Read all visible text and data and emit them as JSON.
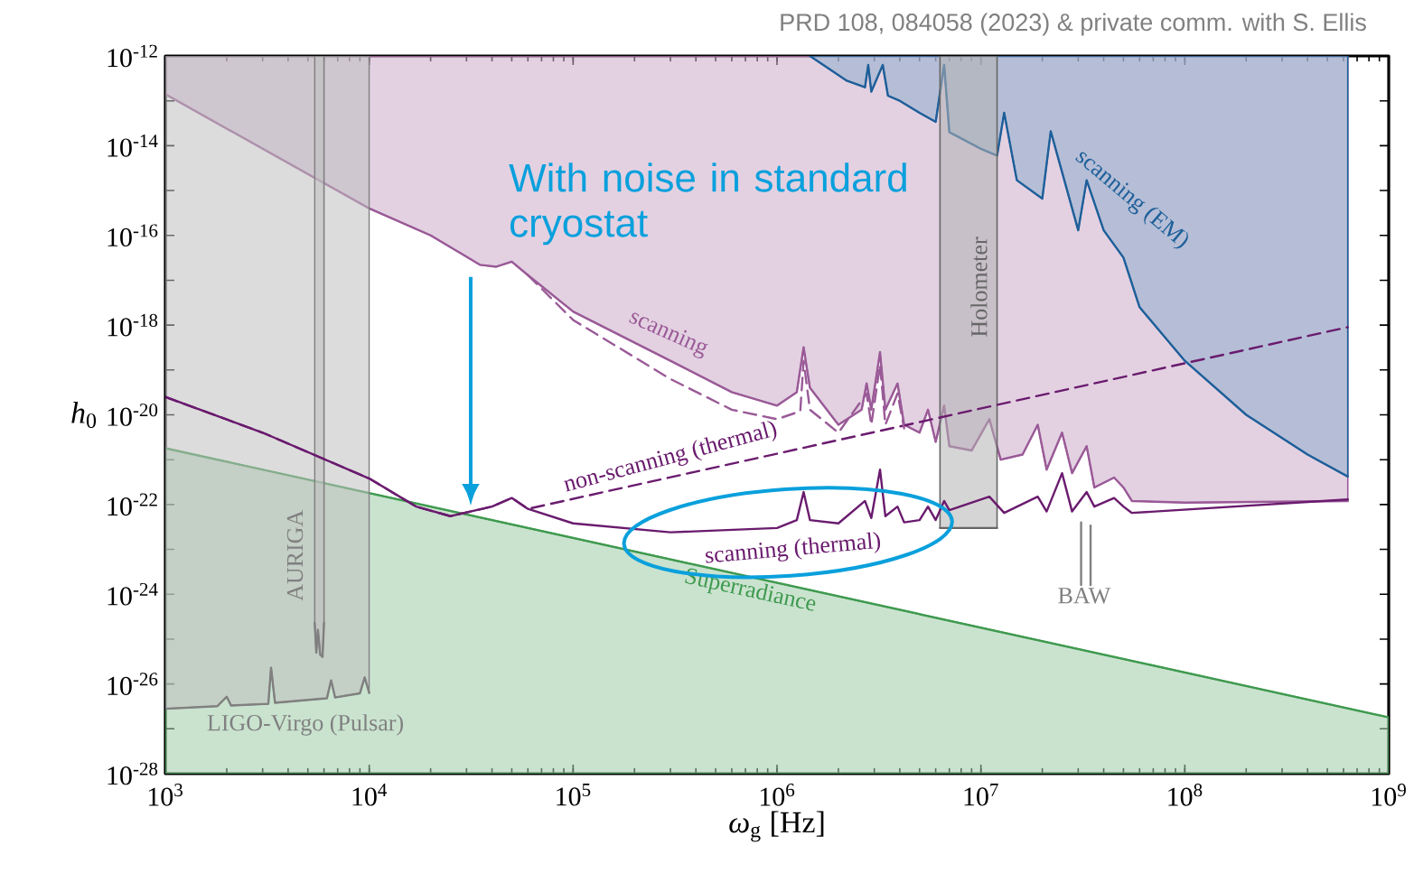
{
  "chart_data": {
    "type": "line",
    "log": "xy",
    "xlabel": "*ω*$_{g}$ [Hz]",
    "ylabel": "*h*$_{0}$",
    "xlim": [
      1000,
      1000000000
    ],
    "ylim": [
      1e-28,
      1e-12
    ],
    "xticks": [
      {
        "value": 1000,
        "label": "10$^{3}$"
      },
      {
        "value": 10000,
        "label": "10$^{4}$"
      },
      {
        "value": 100000,
        "label": "10$^{5}$"
      },
      {
        "value": 1000000,
        "label": "10$^{6}$"
      },
      {
        "value": 10000000,
        "label": "10$^{7}$"
      },
      {
        "value": 100000000,
        "label": "10$^{8}$"
      },
      {
        "value": 1000000000,
        "label": "10$^{9}$"
      }
    ],
    "yticks": [
      {
        "value": 1e-28,
        "label": "10$^{-28}$"
      },
      {
        "value": 1e-27,
        "label": null
      },
      {
        "value": 1e-26,
        "label": "10$^{-26}$"
      },
      {
        "value": 1e-25,
        "label": null
      },
      {
        "value": 1e-24,
        "label": "10$^{-24}$"
      },
      {
        "value": 1e-23,
        "label": null
      },
      {
        "value": 1e-22,
        "label": "10$^{-22}$"
      },
      {
        "value": 1e-21,
        "label": null
      },
      {
        "value": 1e-20,
        "label": "10$^{-20}$"
      },
      {
        "value": 1e-19,
        "label": null
      },
      {
        "value": 1e-18,
        "label": "10$^{-18}$"
      },
      {
        "value": 1e-17,
        "label": null
      },
      {
        "value": 1e-16,
        "label": "10$^{-16}$"
      },
      {
        "value": 1e-15,
        "label": null
      },
      {
        "value": 1e-14,
        "label": "10$^{-14}$"
      },
      {
        "value": 1e-13,
        "label": null
      },
      {
        "value": 1e-12,
        "label": "10$^{-12}$"
      }
    ],
    "annotations": [
      "PRD 108, 084058 (2023) & private comm. with S. Ellis",
      "With noise in standard cryostat"
    ],
    "series": [
      {
        "name": "Superradiance",
        "color": "#3f9a4f",
        "x": [
          1000,
          1000000000
        ],
        "values": [
          1.8e-21,
          1.8e-27
        ],
        "lower": [
          1e-28,
          1e-28
        ],
        "upper": [
          1.8e-21,
          1.8e-27
        ]
      },
      {
        "name": "scanning",
        "color": "#9a5a97",
        "x": [
          1000,
          10000,
          20000,
          35000,
          42000,
          50000,
          60000,
          100000,
          300000,
          600000,
          1000000,
          1250000,
          1350000,
          1450000,
          2000000,
          2600000,
          2750000,
          2900000,
          3200000,
          3400000,
          3900000,
          4200000,
          5000000,
          5500000,
          6000000,
          6600000,
          7000000,
          9000000,
          11000000,
          12500000,
          16000000,
          19000000,
          21000000,
          25000000,
          28000000,
          33000000,
          36000000,
          45000000,
          50000000,
          55000000,
          100000000,
          630000000
        ],
        "values": [
          1.4e-13,
          4e-16,
          1e-16,
          2.2e-17,
          2e-17,
          2.6e-17,
          1.3e-17,
          2e-18,
          1.6e-19,
          3.2e-20,
          1.6e-20,
          3.2e-20,
          3.2e-19,
          4e-20,
          6e-21,
          1.3e-20,
          5e-20,
          1.3e-20,
          2.5e-19,
          1.3e-20,
          5e-20,
          6e-21,
          4e-21,
          1.3e-20,
          2.5e-21,
          1.6e-20,
          2e-21,
          1.6e-21,
          8e-21,
          1e-21,
          1.3e-21,
          6e-21,
          6e-22,
          4e-21,
          5e-22,
          2e-21,
          2.4e-22,
          4e-22,
          2.4e-22,
          1.2e-22,
          1.1e-22,
          1.2e-22
        ],
        "lower": [
          1.4e-13,
          4e-16,
          1e-16,
          2.2e-17,
          2e-17,
          2.6e-17,
          1.3e-17,
          2e-18,
          1.6e-19,
          3.2e-20,
          1.6e-20,
          3.2e-20,
          3.2e-19,
          4e-20,
          6e-21,
          1.3e-20,
          5e-20,
          1.3e-20,
          2.5e-19,
          1.3e-20,
          5e-20,
          6e-21,
          4e-21,
          1.3e-20,
          2.5e-21,
          1.6e-20,
          2e-21,
          1.6e-21,
          8e-21,
          1e-21,
          1.3e-21,
          6e-21,
          6e-22,
          4e-21,
          5e-22,
          2e-21,
          2.4e-22,
          4e-22,
          2.4e-22,
          1.2e-22,
          1.1e-22,
          1.2e-22
        ],
        "upper": [
          1e-12,
          1e-12,
          1e-12,
          1e-12,
          1e-12,
          1e-12,
          1e-12,
          1e-12,
          1e-12,
          1e-12,
          1e-12,
          1e-12,
          1e-12,
          1e-12,
          1e-12,
          1e-12,
          1e-12,
          1e-12,
          1e-12,
          1e-12,
          1e-12,
          1e-12,
          1e-12,
          1e-12,
          1e-12,
          1e-12,
          1e-12,
          1e-12,
          1e-12,
          1e-12,
          1e-12,
          1e-12,
          1e-12,
          1e-12,
          1e-12,
          1e-12,
          1e-12,
          1e-12,
          1e-12,
          1e-12,
          1e-12,
          1e-12
        ]
      },
      {
        "name": "scanning (EM)",
        "color": "#1f5f9a",
        "x": [
          1450000,
          2200000,
          2700000,
          2800000,
          2900000,
          3300000,
          3500000,
          4000000,
          5000000,
          6000000,
          6600000,
          7000000,
          10000000,
          12000000,
          13000000,
          15000000,
          20000000,
          22000000,
          30000000,
          33000000,
          40000000,
          50000000,
          60000000,
          100000000,
          200000000,
          400000000,
          630000000
        ],
        "values": [
          1e-12,
          2.8e-13,
          2e-13,
          6.3e-13,
          1.6e-13,
          6.3e-13,
          1.3e-13,
          1e-13,
          5.4e-14,
          3.4e-14,
          6.3e-13,
          2e-14,
          8.5e-15,
          6e-15,
          5.4e-14,
          1.7e-15,
          6.6e-16,
          2.1e-14,
          1.3e-16,
          1.7e-15,
          1.3e-16,
          3.2e-17,
          2.5e-18,
          1.6e-19,
          1e-20,
          1.3e-21,
          4.2e-22
        ],
        "lower": [
          1e-12,
          2.8e-13,
          2e-13,
          6.3e-13,
          1.6e-13,
          6.3e-13,
          1.3e-13,
          1e-13,
          5.4e-14,
          3.4e-14,
          6.3e-13,
          2e-14,
          8.5e-15,
          6e-15,
          5.4e-14,
          1.7e-15,
          6.6e-16,
          2.1e-14,
          1.3e-16,
          1.7e-15,
          1.3e-16,
          3.2e-17,
          2.5e-18,
          1.6e-19,
          1e-20,
          1.3e-21,
          4.2e-22
        ],
        "upper": [
          1e-12,
          1e-12,
          1e-12,
          1e-12,
          1e-12,
          1e-12,
          1e-12,
          1e-12,
          1e-12,
          1e-12,
          1e-12,
          1e-12,
          1e-12,
          1e-12,
          1e-12,
          1e-12,
          1e-12,
          1e-12,
          1e-12,
          1e-12,
          1e-12,
          1e-12,
          1e-12,
          1e-12,
          1e-12,
          1e-12,
          1e-12
        ]
      },
      {
        "name": "LIGO-Virgo (Pulsar)",
        "color": "#808080",
        "x": [
          1000,
          1800,
          2000,
          2100,
          3200,
          3300,
          3450,
          6200,
          6500,
          6800,
          9000,
          9500,
          10000
        ],
        "values": [
          2.8e-27,
          3.2e-27,
          5.2e-27,
          3.3e-27,
          3.6e-27,
          2.3e-26,
          3.8e-27,
          4.8e-27,
          1.2e-26,
          5e-27,
          6.2e-27,
          1.4e-26,
          6.3e-27
        ],
        "lower": [
          2.8e-27,
          3.2e-27,
          5.2e-27,
          3.3e-27,
          3.6e-27,
          2.3e-26,
          3.8e-27,
          4.8e-27,
          1.2e-26,
          5e-27,
          6.2e-27,
          1.4e-26,
          6.3e-27
        ],
        "upper": [
          1e-12,
          1e-12,
          1e-12,
          1e-12,
          1e-12,
          1e-12,
          1e-12,
          1e-12,
          1e-12,
          1e-12,
          1e-12,
          1e-12,
          1e-12
        ]
      },
      {
        "name": "AURIGA",
        "color": "#808080",
        "x": [
          5400,
          5500,
          5600,
          5750,
          5900,
          6000
        ],
        "values": [
          2.3e-25,
          5e-26,
          1.6e-25,
          4.5e-26,
          4e-26,
          2.3e-25
        ],
        "lower": [
          2.3e-25,
          5e-26,
          1.6e-25,
          4.5e-26,
          4e-26,
          2.3e-25
        ],
        "upper": [
          1e-12,
          1e-12,
          1e-12,
          1e-12,
          1e-12,
          1e-12
        ]
      },
      {
        "name": "Holometer",
        "color": "#666666",
        "x": [
          6300000,
          12000000
        ],
        "values": [
          3e-23,
          3e-23
        ],
        "lower": [
          3e-23,
          3e-23
        ],
        "upper": [
          1e-12,
          1e-12
        ]
      },
      {
        "name": "non-scanning (thermal)",
        "color": "#6a1b6e",
        "line_style": "dashed",
        "x": [
          1000,
          3000,
          10000,
          17000,
          25000,
          40000,
          50000,
          60000,
          630000000
        ],
        "values": [
          2.5e-20,
          4e-21,
          3.8e-22,
          9e-23,
          5.5e-23,
          9e-23,
          1.4e-22,
          8e-23,
          9e-19
        ]
      },
      {
        "name": "scanning (thermal)",
        "color": "#6a1b6e",
        "line_style": "solid",
        "x": [
          1000,
          3000,
          10000,
          17000,
          25000,
          40000,
          50000,
          60000,
          100000,
          300000,
          1000000,
          1250000,
          1350000,
          1450000,
          2000000,
          2700000,
          2900000,
          3200000,
          3400000,
          3900000,
          4200000,
          5000000,
          5500000,
          6000000,
          6600000,
          7000000,
          11000000,
          13000000,
          19000000,
          21000000,
          25000000,
          28000000,
          33000000,
          36000000,
          45000000,
          50000000,
          55000000,
          630000000
        ],
        "values": [
          2.5e-20,
          4e-21,
          3.8e-22,
          9e-23,
          5.5e-23,
          9e-23,
          1.4e-22,
          8e-23,
          3.8e-23,
          2.4e-23,
          3e-23,
          4.5e-23,
          1.9e-22,
          4.5e-23,
          3.8e-23,
          1.2e-22,
          5e-23,
          6e-22,
          5.5e-23,
          9e-23,
          4e-23,
          4.5e-23,
          9e-23,
          4.5e-23,
          1.2e-22,
          7.5e-23,
          1.5e-22,
          6.5e-23,
          1.5e-22,
          7e-23,
          5e-22,
          7e-23,
          1.9e-22,
          9e-23,
          1.4e-22,
          9e-23,
          6.5e-23,
          1.3e-22
        ]
      },
      {
        "color": "#9a5a97",
        "line_style": "dashed",
        "x": [
          60000,
          100000,
          300000,
          600000,
          1000000,
          1300000,
          1350000,
          1450000,
          2000000,
          2750000,
          2900000,
          3200000,
          3400000,
          3900000,
          4200000
        ],
        "values": [
          1.3e-17,
          1.3e-18,
          6.3e-20,
          1.3e-20,
          8e-21,
          1.2e-20,
          1.6e-19,
          1.3e-20,
          4e-21,
          3e-20,
          6e-21,
          1.3e-19,
          6e-21,
          3e-20,
          5e-21
        ]
      },
      {
        "name": "BAW",
        "color": "#808080",
        "line_style": "solid",
        "x": [
          31000000,
          31000000
        ],
        "values": [
          4e-23,
          1.6e-24
        ]
      },
      {
        "color": "#808080",
        "line_style": "solid",
        "x": [
          34500000,
          34500000
        ],
        "values": [
          3.4e-23,
          1.6e-24
        ]
      }
    ]
  }
}
